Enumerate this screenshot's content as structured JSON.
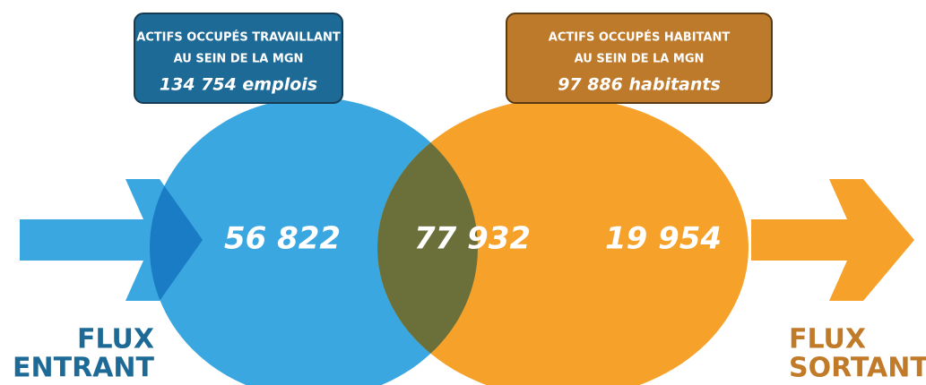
{
  "left_box": {
    "lines": [
      "ACTIFS OCCUPÉS TRAVAILLANT",
      "AU SEIN DE LA MGN"
    ],
    "total": "134 754 emplois"
  },
  "right_box": {
    "lines": [
      "ACTIFS OCCUPÉS HABITANT",
      "AU SEIN DE LA MGN"
    ],
    "total": "97 886 habitants"
  },
  "venn": {
    "left": "56 822",
    "overlap": "77 932",
    "right": "19 954"
  },
  "flux_in": [
    "FLUX",
    "ENTRANT"
  ],
  "flux_out": [
    "FLUX",
    "SORTANT"
  ]
}
